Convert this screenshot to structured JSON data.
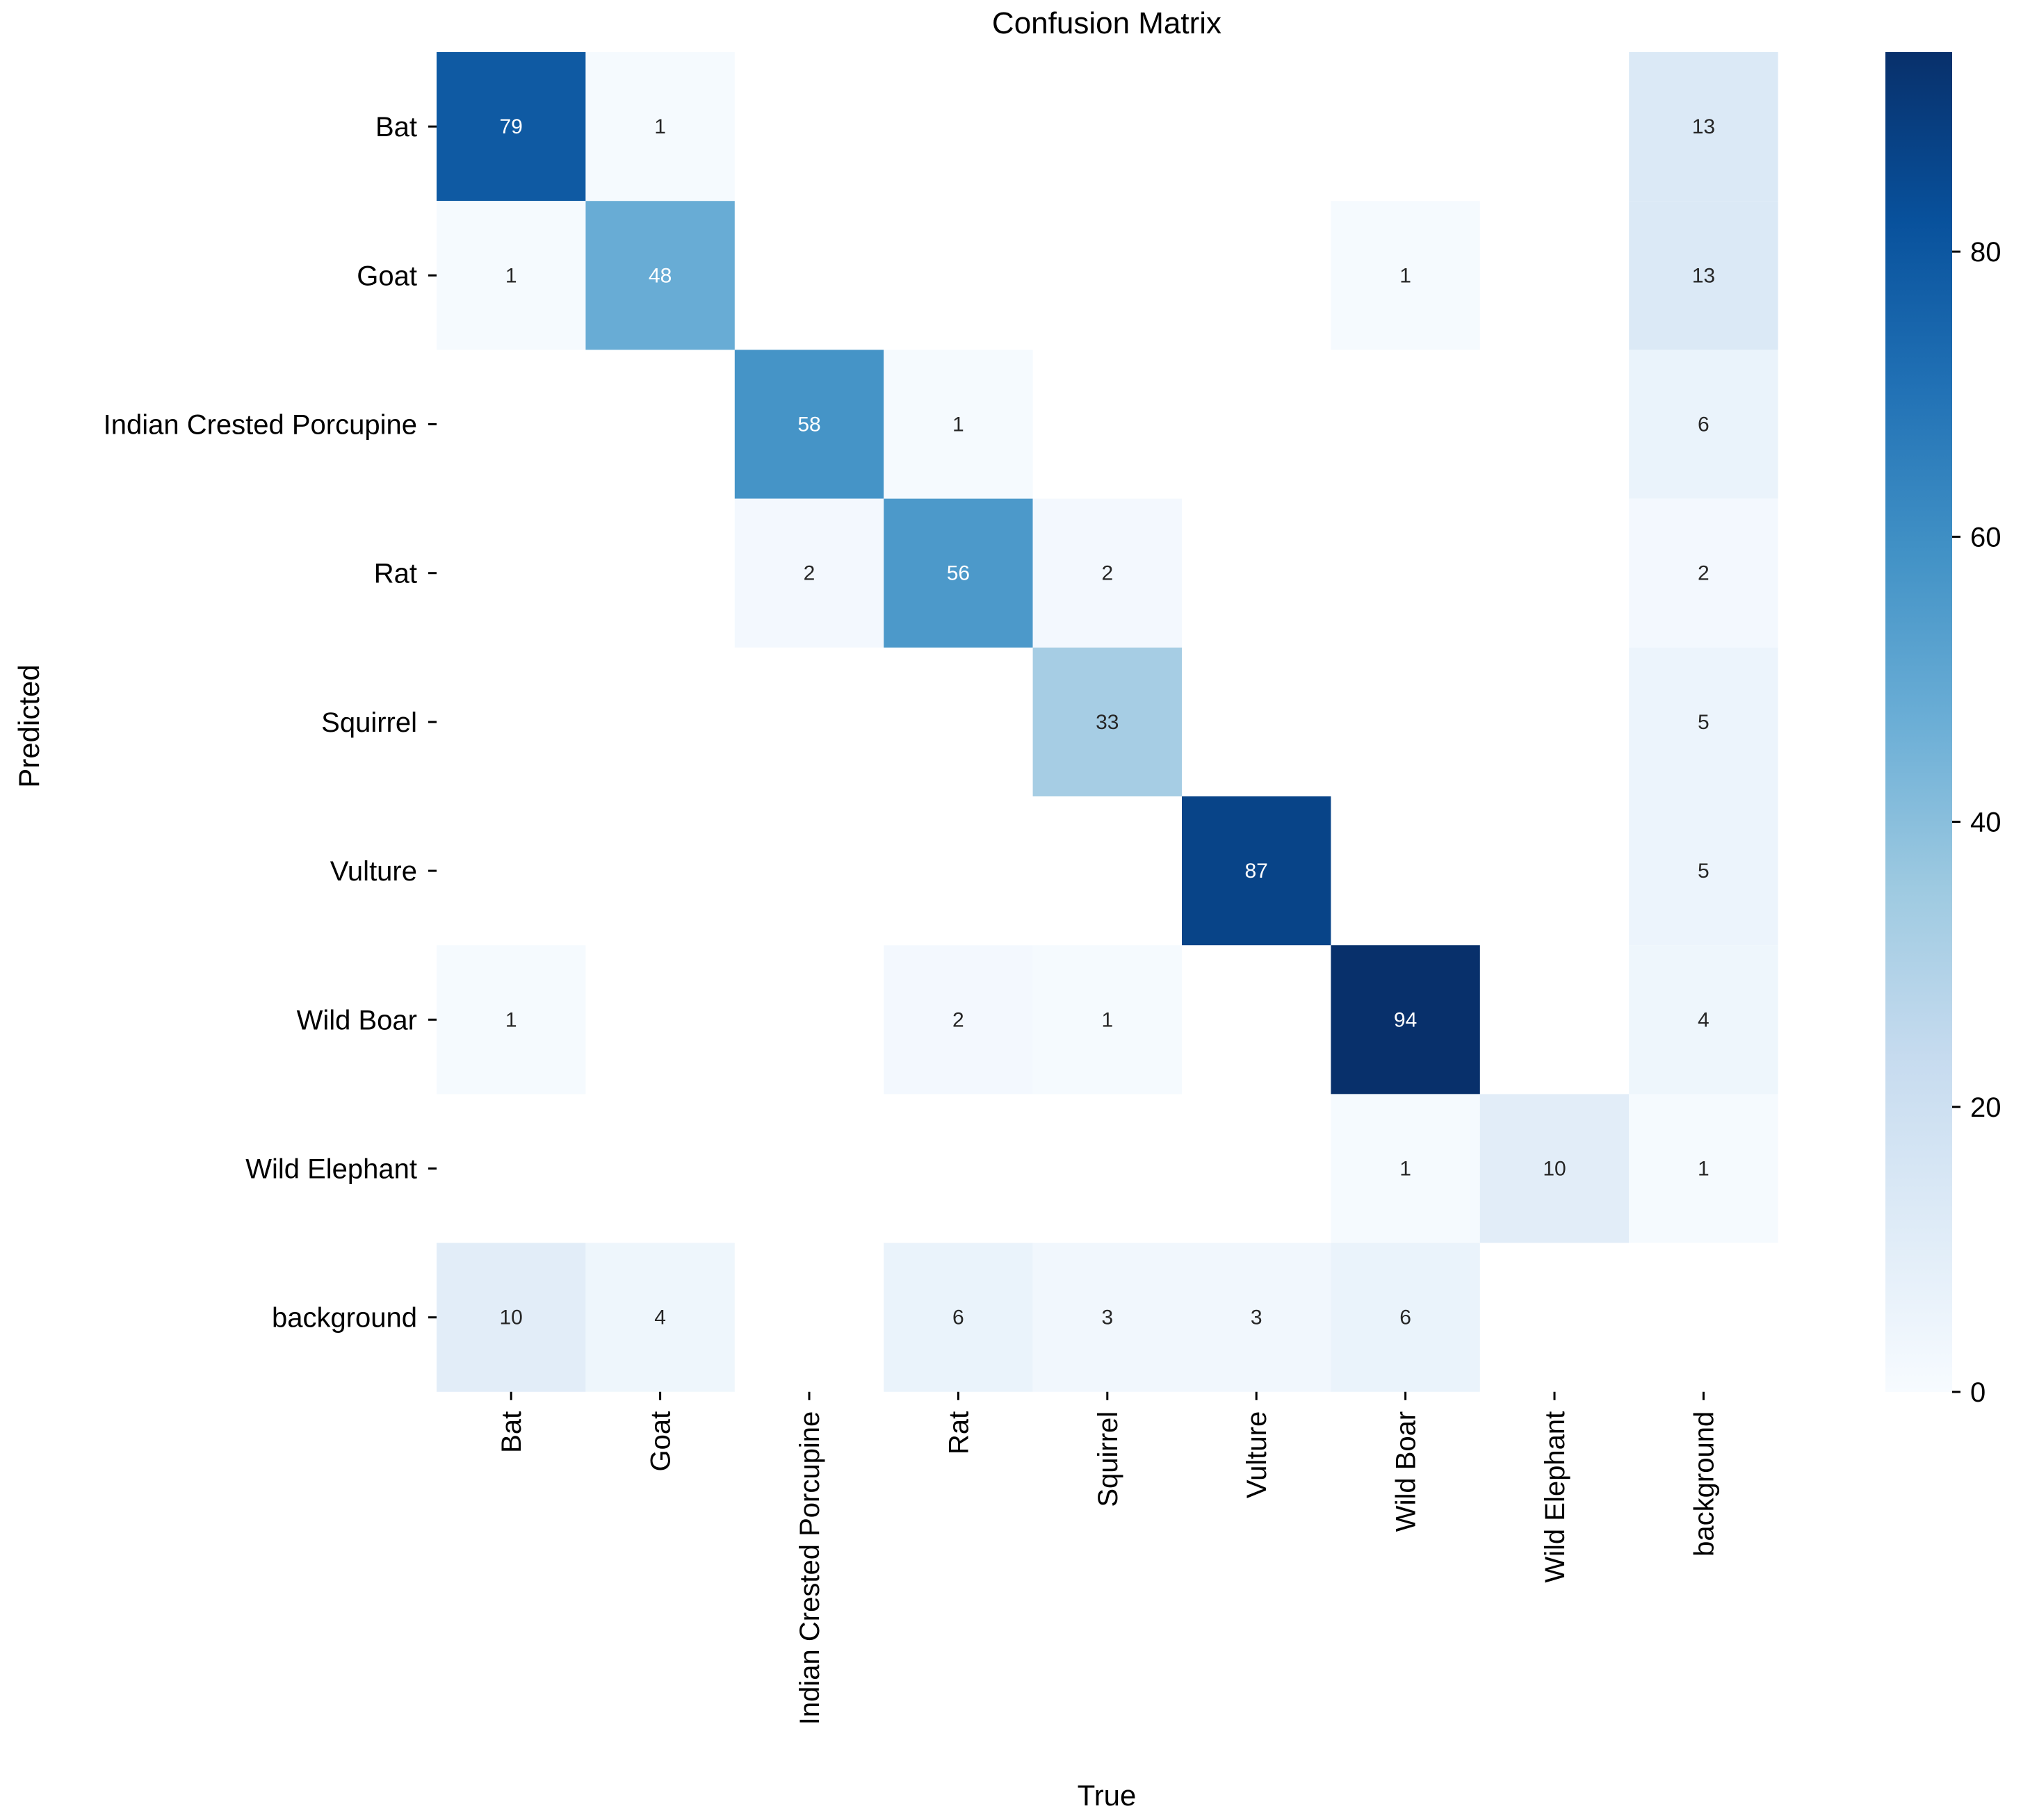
{
  "chart_data": {
    "type": "heatmap",
    "title": "Confusion Matrix",
    "xlabel": "True",
    "ylabel": "Predicted",
    "x_categories": [
      "Bat",
      "Goat",
      "Indian Crested Porcupine",
      "Rat",
      "Squirrel",
      "Vulture",
      "Wild Boar",
      "Wild Elephant",
      "background"
    ],
    "y_categories": [
      "Bat",
      "Goat",
      "Indian Crested Porcupine",
      "Rat",
      "Squirrel",
      "Vulture",
      "Wild Boar",
      "Wild Elephant",
      "background"
    ],
    "matrix": [
      [
        79,
        1,
        null,
        null,
        null,
        null,
        null,
        null,
        13
      ],
      [
        1,
        48,
        null,
        null,
        null,
        null,
        1,
        null,
        13
      ],
      [
        null,
        null,
        58,
        1,
        null,
        null,
        null,
        null,
        6
      ],
      [
        null,
        null,
        2,
        56,
        2,
        null,
        null,
        null,
        2
      ],
      [
        null,
        null,
        null,
        null,
        33,
        null,
        null,
        null,
        5
      ],
      [
        null,
        null,
        null,
        null,
        null,
        87,
        null,
        null,
        5
      ],
      [
        1,
        null,
        null,
        2,
        1,
        null,
        94,
        null,
        4
      ],
      [
        null,
        null,
        null,
        null,
        null,
        null,
        1,
        10,
        1
      ],
      [
        10,
        4,
        null,
        6,
        3,
        3,
        6,
        null,
        null
      ]
    ],
    "colormap": "Blues",
    "colorbar": {
      "range": [
        0,
        94
      ],
      "ticks": [
        0,
        20,
        40,
        60,
        80
      ],
      "position": "right"
    },
    "colors": {
      "low": "#f7fbff",
      "high": "#08306b"
    }
  }
}
